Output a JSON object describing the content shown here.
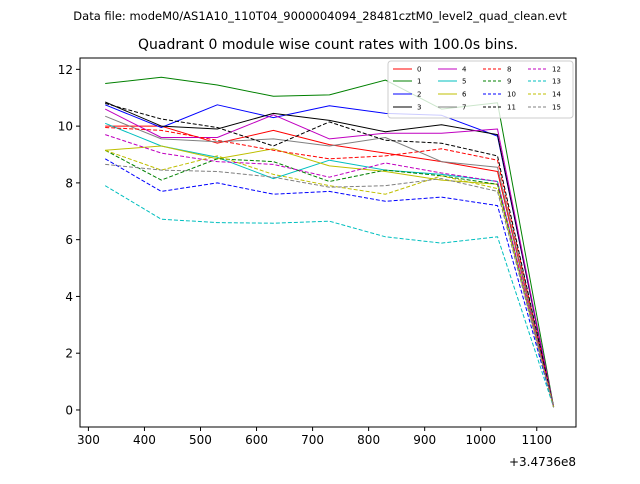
{
  "suptitle": "Data file: modeM0/AS1A10_110T04_9000004094_28481cztM0_level2_quad_clean.evt",
  "chart_data": {
    "type": "line",
    "title": "Quadrant 0 module wise count rates with 100.0s bins.",
    "xlabel": "",
    "ylabel": "",
    "x_offset_label": "+3.4736e8",
    "x": [
      330,
      430,
      530,
      630,
      730,
      830,
      930,
      1030,
      1130
    ],
    "xlim": [
      285,
      1170
    ],
    "ylim": [
      -0.6,
      12.4
    ],
    "xticks": [
      300,
      400,
      500,
      600,
      700,
      800,
      900,
      1000,
      1100
    ],
    "yticks": [
      0,
      2,
      4,
      6,
      8,
      10,
      12
    ],
    "legend_position": "top-right",
    "legend_columns": 4,
    "series": [
      {
        "name": "0",
        "color": "#ff0000",
        "dashed": false,
        "values": [
          10.0,
          10.0,
          9.4,
          9.85,
          9.35,
          9.05,
          8.75,
          8.4,
          0.1
        ]
      },
      {
        "name": "1",
        "color": "#008000",
        "dashed": false,
        "values": [
          11.5,
          11.72,
          11.45,
          11.05,
          11.1,
          11.62,
          10.6,
          10.82,
          0.12
        ]
      },
      {
        "name": "2",
        "color": "#0000ff",
        "dashed": false,
        "values": [
          10.75,
          9.95,
          10.75,
          10.3,
          10.72,
          10.45,
          10.38,
          9.65,
          0.1
        ]
      },
      {
        "name": "3",
        "color": "#000000",
        "dashed": false,
        "values": [
          10.85,
          10.0,
          9.9,
          10.45,
          10.2,
          9.8,
          10.05,
          9.7,
          0.1
        ]
      },
      {
        "name": "4",
        "color": "#c000c0",
        "dashed": false,
        "values": [
          10.6,
          9.6,
          9.6,
          10.4,
          9.55,
          9.75,
          9.75,
          9.9,
          0.1
        ]
      },
      {
        "name": "5",
        "color": "#00bfbf",
        "dashed": false,
        "values": [
          10.1,
          9.3,
          8.9,
          8.15,
          8.8,
          8.45,
          8.3,
          8.05,
          0.1
        ]
      },
      {
        "name": "6",
        "color": "#bfbf00",
        "dashed": false,
        "values": [
          9.15,
          9.3,
          8.85,
          9.2,
          8.6,
          8.4,
          8.1,
          7.95,
          0.1
        ]
      },
      {
        "name": "7",
        "color": "#808080",
        "dashed": false,
        "values": [
          10.35,
          9.55,
          9.45,
          9.55,
          9.3,
          9.6,
          8.75,
          8.55,
          0.1
        ]
      },
      {
        "name": "8",
        "color": "#ff0000",
        "dashed": true,
        "values": [
          9.95,
          9.85,
          9.5,
          9.15,
          8.85,
          8.95,
          9.2,
          8.8,
          0.1
        ]
      },
      {
        "name": "9",
        "color": "#008000",
        "dashed": true,
        "values": [
          9.15,
          8.1,
          8.85,
          8.75,
          8.05,
          8.45,
          8.25,
          7.95,
          0.1
        ]
      },
      {
        "name": "10",
        "color": "#0000ff",
        "dashed": true,
        "values": [
          8.85,
          7.7,
          8.0,
          7.6,
          7.7,
          7.35,
          7.5,
          7.2,
          0.1
        ]
      },
      {
        "name": "11",
        "color": "#000000",
        "dashed": true,
        "values": [
          10.8,
          10.25,
          9.95,
          9.3,
          10.15,
          9.5,
          9.4,
          8.95,
          0.1
        ]
      },
      {
        "name": "12",
        "color": "#c000c0",
        "dashed": true,
        "values": [
          9.7,
          9.05,
          8.75,
          8.65,
          8.2,
          8.7,
          8.35,
          8.05,
          0.1
        ]
      },
      {
        "name": "13",
        "color": "#00bfbf",
        "dashed": true,
        "values": [
          7.9,
          6.72,
          6.6,
          6.58,
          6.65,
          6.1,
          5.88,
          6.1,
          0.1
        ]
      },
      {
        "name": "14",
        "color": "#bfbf00",
        "dashed": true,
        "values": [
          9.15,
          8.45,
          8.95,
          8.3,
          7.9,
          7.6,
          8.25,
          7.8,
          0.1
        ]
      },
      {
        "name": "15",
        "color": "#808080",
        "dashed": true,
        "values": [
          8.65,
          8.45,
          8.4,
          8.2,
          7.85,
          7.9,
          8.15,
          7.7,
          0.1
        ]
      }
    ]
  }
}
